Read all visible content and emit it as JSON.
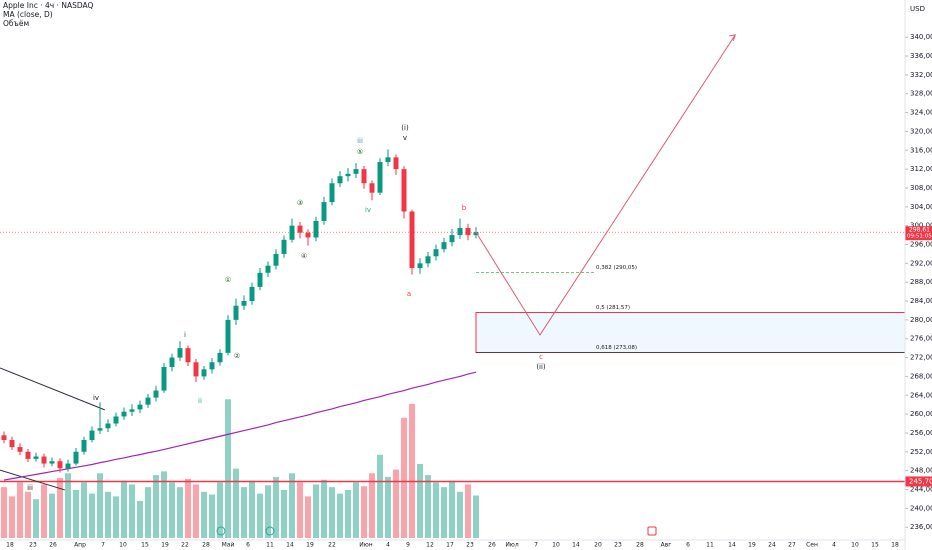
{
  "chart_data": {
    "type": "candlestick",
    "title": "Apple Inc · 4ч · NASDAQ",
    "indicators": [
      "MA (close, D)",
      "Объём"
    ],
    "currency": "USD",
    "ylim": [
      233.7,
      347.9
    ],
    "yticks": [
      {
        "value": 236,
        "label": "236,00"
      },
      {
        "value": 240,
        "label": "240,00"
      },
      {
        "value": 244,
        "label": "244,00"
      },
      {
        "value": 248,
        "label": "248,00"
      },
      {
        "value": 252,
        "label": "252,00"
      },
      {
        "value": 256,
        "label": "256,00"
      },
      {
        "value": 260,
        "label": "260,00"
      },
      {
        "value": 264,
        "label": "264,00"
      },
      {
        "value": 268,
        "label": "268,00"
      },
      {
        "value": 272,
        "label": "272,00"
      },
      {
        "value": 276,
        "label": "276,00"
      },
      {
        "value": 280,
        "label": "280,00"
      },
      {
        "value": 284,
        "label": "284,00"
      },
      {
        "value": 288,
        "label": "288,00"
      },
      {
        "value": 292,
        "label": "292,00"
      },
      {
        "value": 296,
        "label": "296,00"
      },
      {
        "value": 300,
        "label": "300,00"
      },
      {
        "value": 304,
        "label": "304,00"
      },
      {
        "value": 308,
        "label": "308,00"
      },
      {
        "value": 312,
        "label": "312,00"
      },
      {
        "value": 316,
        "label": "316,00"
      },
      {
        "value": 320,
        "label": "320,00"
      },
      {
        "value": 324,
        "label": "324,00"
      },
      {
        "value": 328,
        "label": "328,00"
      },
      {
        "value": 332,
        "label": "332,00"
      },
      {
        "value": 336,
        "label": "336,00"
      },
      {
        "value": 340,
        "label": "340,00"
      }
    ],
    "x_labels": [
      "18",
      "23",
      "26",
      "Апр",
      "7",
      "10",
      "15",
      "19",
      "22",
      "28",
      "Май",
      "6",
      "11",
      "14",
      "19",
      "22",
      "Июн",
      "4",
      "9",
      "12",
      "17",
      "23",
      "26",
      "Июл",
      "7",
      "10",
      "14",
      "20",
      "23",
      "28",
      "Авг",
      "6",
      "11",
      "14",
      "19",
      "24",
      "27",
      "Сен",
      "4",
      "10",
      "15",
      "18"
    ],
    "up_color": "#089981",
    "down_color": "#f23645",
    "candles": [
      [
        255.5,
        256.3,
        253.8,
        254.5
      ],
      [
        254.5,
        255.2,
        252.4,
        253
      ],
      [
        253,
        253.8,
        251.3,
        252
      ],
      [
        252,
        252.6,
        249.8,
        250.5
      ],
      [
        250.5,
        251.8,
        249.9,
        251
      ],
      [
        251,
        251.6,
        248.7,
        249.5
      ],
      [
        249.5,
        250.8,
        248.9,
        250
      ],
      [
        250,
        250.6,
        247.6,
        248.5
      ],
      [
        248.5,
        250.3,
        247.8,
        249.5
      ],
      [
        249.5,
        252.8,
        249.1,
        252
      ],
      [
        252,
        255.2,
        251.4,
        254.5
      ],
      [
        254.5,
        257.4,
        254,
        256.5
      ],
      [
        256.5,
        262.5,
        255.8,
        257
      ],
      [
        257,
        258.9,
        256.2,
        258
      ],
      [
        258,
        260.3,
        257.4,
        259.5
      ],
      [
        259.5,
        261.4,
        258.8,
        260.5
      ],
      [
        260.5,
        262.1,
        259.6,
        261
      ],
      [
        261,
        262.9,
        260.2,
        262
      ],
      [
        262,
        264.3,
        261.3,
        263.5
      ],
      [
        263.5,
        266,
        262.7,
        265
      ],
      [
        265,
        270.9,
        264.5,
        270
      ],
      [
        270,
        272.8,
        269.1,
        272
      ],
      [
        272,
        275.5,
        271.3,
        274
      ],
      [
        274,
        274.6,
        270.2,
        271
      ],
      [
        271,
        271.7,
        266.8,
        268
      ],
      [
        268,
        270.2,
        267.3,
        269.5
      ],
      [
        269.5,
        271.9,
        268.6,
        271
      ],
      [
        271,
        273.8,
        270.3,
        273
      ],
      [
        273,
        281,
        272.5,
        280
      ],
      [
        280,
        284.5,
        278.9,
        283
      ],
      [
        283,
        285.2,
        282.1,
        284
      ],
      [
        284,
        287.9,
        283.2,
        287
      ],
      [
        287,
        291,
        286.3,
        290
      ],
      [
        290,
        292.4,
        289.1,
        291.5
      ],
      [
        291.5,
        295,
        290.7,
        294
      ],
      [
        294,
        297.9,
        293.2,
        297
      ],
      [
        297,
        301.5,
        296.4,
        300
      ],
      [
        300,
        300.8,
        297.3,
        298.5
      ],
      [
        298.5,
        299.2,
        295.8,
        297.5
      ],
      [
        297.5,
        301.9,
        296.7,
        301
      ],
      [
        301,
        306.1,
        300.2,
        305
      ],
      [
        305,
        310,
        304.3,
        309
      ],
      [
        309,
        311.6,
        308.2,
        310.5
      ],
      [
        310.5,
        312.2,
        309.4,
        311
      ],
      [
        311,
        313.3,
        310.1,
        312
      ],
      [
        312,
        312.7,
        307.8,
        309
      ],
      [
        309,
        309.6,
        305.4,
        307
      ],
      [
        307,
        314.3,
        306.5,
        313.5
      ],
      [
        313.5,
        316.2,
        312.6,
        314.5
      ],
      [
        314.5,
        315.1,
        310.8,
        312
      ],
      [
        312,
        312.6,
        301.5,
        303
      ],
      [
        303,
        303.4,
        289.6,
        291
      ],
      [
        291,
        293.1,
        289.8,
        292
      ],
      [
        292,
        294.4,
        291.2,
        293.5
      ],
      [
        293.5,
        296,
        292.6,
        295
      ],
      [
        295,
        297.4,
        294.3,
        296.5
      ],
      [
        296.5,
        299.3,
        295.6,
        298
      ],
      [
        298,
        301.5,
        297.2,
        299.5
      ],
      [
        299.5,
        300.4,
        296.9,
        298
      ],
      [
        298,
        299.7,
        297.3,
        298.6
      ]
    ],
    "volume": {
      "lim": [
        0,
        160
      ],
      "values": [
        55,
        45,
        60,
        50,
        42,
        58,
        48,
        65,
        70,
        52,
        60,
        48,
        70,
        50,
        45,
        62,
        58,
        40,
        55,
        68,
        72,
        60,
        55,
        64,
        58,
        50,
        47,
        60,
        150,
        75,
        55,
        62,
        48,
        57,
        66,
        52,
        70,
        60,
        45,
        58,
        63,
        55,
        48,
        52,
        60,
        56,
        70,
        90,
        66,
        74,
        130,
        145,
        80,
        68,
        60,
        55,
        62,
        50,
        58,
        46
      ]
    },
    "ma": {
      "color": "#9c27b0",
      "values": [
        246.0,
        246.3,
        246.6,
        246.9,
        247.2,
        247.5,
        247.8,
        248.1,
        248.4,
        248.7,
        249.0,
        249.3,
        249.7,
        250.0,
        250.4,
        250.7,
        251.1,
        251.4,
        251.8,
        252.1,
        252.5,
        252.9,
        253.3,
        253.7,
        254.1,
        254.5,
        254.9,
        255.3,
        255.7,
        256.1,
        256.5,
        256.9,
        257.3,
        257.7,
        258.2,
        258.6,
        259.0,
        259.4,
        259.8,
        260.3,
        260.7,
        261.1,
        261.6,
        262.0,
        262.4,
        262.9,
        263.3,
        263.7,
        264.2,
        264.6,
        265.0,
        265.5,
        265.9,
        266.3,
        266.8,
        267.2,
        267.6,
        268.0,
        268.5,
        268.9
      ]
    },
    "trendlines": [
      {
        "x": [
          -0.5,
          12.6
        ],
        "y": [
          269.8,
          260.9
        ]
      },
      {
        "x": [
          -0.5,
          7.6
        ],
        "y": [
          248.1,
          243.9
        ]
      }
    ],
    "price_line": {
      "value": 298.61,
      "label": "298,61",
      "timer": "09:51:05"
    },
    "support": {
      "value": 245.7,
      "label": "245,70",
      "color": "#f23645"
    },
    "fib_levels": [
      {
        "label": "0,382 (290,05)",
        "value": 290.05,
        "color": "#4caf50"
      },
      {
        "label": "0,5 (281,57)",
        "value": 281.57,
        "color": "#f23645"
      },
      {
        "label": "0,618 (273,08)",
        "value": 273.08,
        "color": "#333333"
      }
    ],
    "projection": {
      "color": "#e05a74",
      "x": [
        59,
        67,
        91.4
      ],
      "y": [
        298.6,
        276.8,
        340.5
      ]
    },
    "annotations": [
      {
        "text": "iv",
        "color": "#131722"
      },
      {
        "text": "iii",
        "color": "#131722"
      },
      {
        "text": "i",
        "color": "#1b5e20"
      },
      {
        "text": "ii",
        "color": "#26a69a"
      },
      {
        "text": "①",
        "color": "#1b5e20"
      },
      {
        "text": "②",
        "color": "#1b5e20"
      },
      {
        "text": "③",
        "color": "#1b5e20"
      },
      {
        "text": "④",
        "color": "#1b5e20"
      },
      {
        "text": "⑤",
        "color": "#1b5e20"
      },
      {
        "text": "iii",
        "color": "#26a69a"
      },
      {
        "text": "iv",
        "color": "#26a69a"
      },
      {
        "text": "(i)",
        "color": "#131722"
      },
      {
        "text": "v",
        "color": "#131722"
      },
      {
        "text": "a",
        "color": "#f23645"
      },
      {
        "text": "b",
        "color": "#f23645"
      },
      {
        "text": "c",
        "color": "#f23645"
      },
      {
        "text": "(ii)",
        "color": "#131722"
      }
    ]
  }
}
